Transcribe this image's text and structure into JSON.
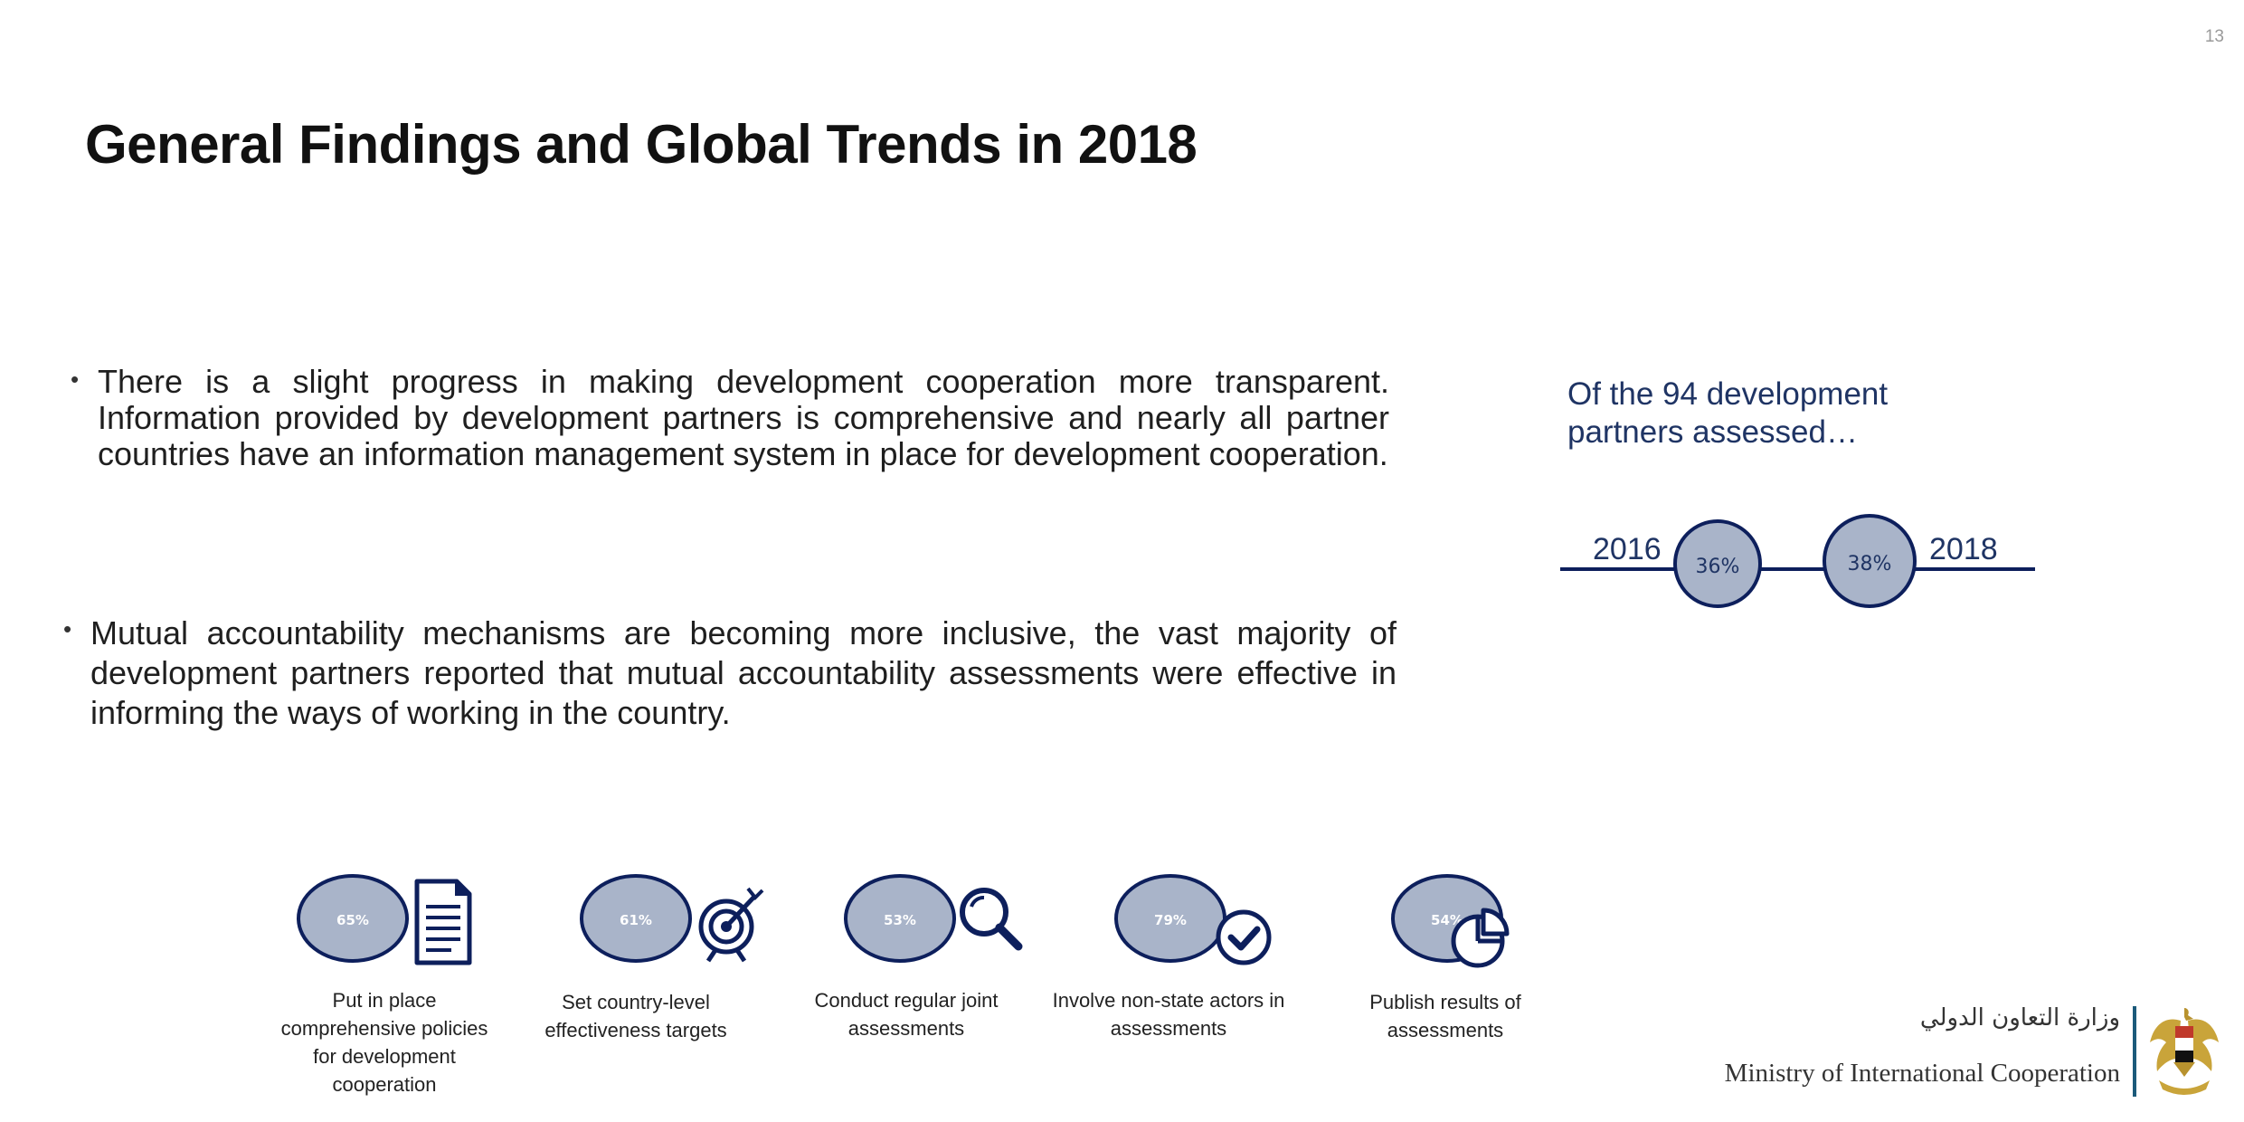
{
  "page": {
    "number": "13",
    "title": "General Findings and Global Trends in 2018"
  },
  "bullets": [
    {
      "dot": "•",
      "text": "There is a slight progress in making development cooperation more transparent. Information provided by development partners is comprehensive and nearly all partner countries have an information management system in place for development cooperation."
    },
    {
      "dot": "•",
      "text": "Mutual accountability mechanisms are becoming more inclusive, the vast majority of development partners reported that mutual accountability assessments were effective in informing the ways of working in the country."
    }
  ],
  "sidebar": {
    "caption": "Of the 94 development partners assessed…",
    "timeline": [
      {
        "year": "2016",
        "value": "36%"
      },
      {
        "year": "2018",
        "value": "38%"
      }
    ]
  },
  "metrics": [
    {
      "value": "65%",
      "icon": "document-icon",
      "label": "Put in place comprehensive policies for development cooperation"
    },
    {
      "value": "61%",
      "icon": "target-icon",
      "label": "Set country-level effectiveness targets"
    },
    {
      "value": "53%",
      "icon": "magnifier-icon",
      "label": "Conduct regular joint assessments"
    },
    {
      "value": "79%",
      "icon": "check-icon",
      "label": "Involve non-state actors in assessments"
    },
    {
      "value": "54%",
      "icon": "pie-chart-icon",
      "label": "Publish results of assessments"
    }
  ],
  "footer": {
    "ministry_ar": "وزارة التعاون الدولي",
    "ministry_en": "Ministry of International Cooperation",
    "emblem_icon": "eagle-emblem-icon"
  },
  "colors": {
    "navy": "#0d1f5c",
    "circle_fill": "#a9b4c9",
    "text_blue": "#1f3464",
    "divider": "#1b5a7a"
  }
}
